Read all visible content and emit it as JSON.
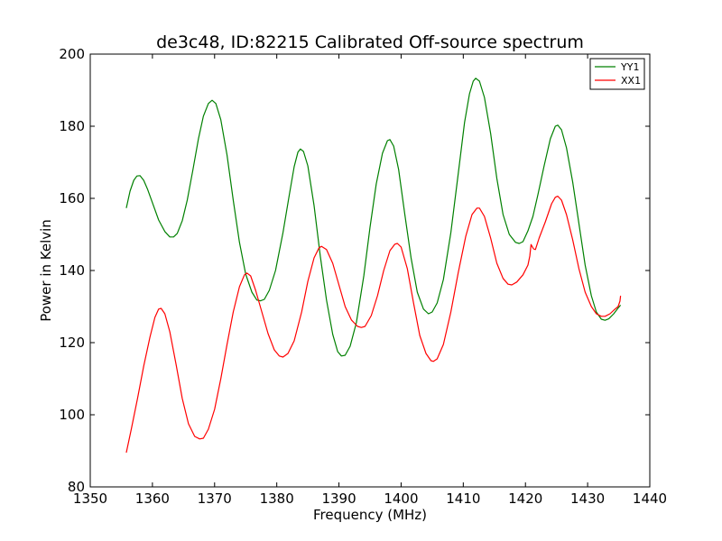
{
  "chart_data": {
    "type": "line",
    "title": "de3c48, ID:82215 Calibrated Off-source spectrum",
    "xlabel": "Frequency (MHz)",
    "ylabel": "Power in Kelvin",
    "xlim": [
      1350,
      1440
    ],
    "ylim": [
      80,
      200
    ],
    "xticks": [
      1350,
      1360,
      1370,
      1380,
      1390,
      1400,
      1410,
      1420,
      1430,
      1440
    ],
    "yticks": [
      80,
      100,
      120,
      140,
      160,
      180,
      200
    ],
    "grid": false,
    "legend_position": "top-right",
    "series": [
      {
        "name": "YY1",
        "color": "#008000",
        "points": [
          [
            1355.8,
            157.3
          ],
          [
            1356.4,
            162.0
          ],
          [
            1357.0,
            165.0
          ],
          [
            1357.5,
            166.2
          ],
          [
            1358.0,
            166.3
          ],
          [
            1358.6,
            165.0
          ],
          [
            1359.2,
            162.6
          ],
          [
            1360.0,
            158.8
          ],
          [
            1361.0,
            154.0
          ],
          [
            1362.0,
            150.8
          ],
          [
            1362.8,
            149.3
          ],
          [
            1363.4,
            149.3
          ],
          [
            1364.0,
            150.3
          ],
          [
            1364.8,
            153.8
          ],
          [
            1365.6,
            159.5
          ],
          [
            1366.5,
            167.8
          ],
          [
            1367.4,
            176.5
          ],
          [
            1368.2,
            182.8
          ],
          [
            1369.0,
            186.3
          ],
          [
            1369.6,
            187.2
          ],
          [
            1370.2,
            186.3
          ],
          [
            1371.0,
            181.8
          ],
          [
            1372.0,
            172.0
          ],
          [
            1373.0,
            159.5
          ],
          [
            1374.0,
            147.8
          ],
          [
            1375.0,
            139.0
          ],
          [
            1376.0,
            134.0
          ],
          [
            1376.8,
            131.8
          ],
          [
            1377.4,
            131.6
          ],
          [
            1378.0,
            132.0
          ],
          [
            1378.8,
            134.5
          ],
          [
            1379.8,
            140.0
          ],
          [
            1381.0,
            150.5
          ],
          [
            1382.0,
            160.8
          ],
          [
            1382.8,
            168.8
          ],
          [
            1383.4,
            172.8
          ],
          [
            1383.8,
            173.7
          ],
          [
            1384.3,
            173.0
          ],
          [
            1385.0,
            169.0
          ],
          [
            1386.0,
            158.0
          ],
          [
            1387.0,
            144.0
          ],
          [
            1388.0,
            131.8
          ],
          [
            1389.0,
            122.3
          ],
          [
            1389.8,
            117.5
          ],
          [
            1390.4,
            116.3
          ],
          [
            1391.0,
            116.5
          ],
          [
            1391.8,
            119.0
          ],
          [
            1392.8,
            125.5
          ],
          [
            1394.0,
            138.5
          ],
          [
            1395.0,
            152.0
          ],
          [
            1396.0,
            164.0
          ],
          [
            1397.0,
            172.5
          ],
          [
            1397.8,
            176.0
          ],
          [
            1398.2,
            176.3
          ],
          [
            1398.8,
            174.5
          ],
          [
            1399.6,
            168.0
          ],
          [
            1400.6,
            155.5
          ],
          [
            1401.6,
            143.5
          ],
          [
            1402.6,
            134.0
          ],
          [
            1403.6,
            129.3
          ],
          [
            1404.4,
            128.0
          ],
          [
            1405.0,
            128.5
          ],
          [
            1405.8,
            131.0
          ],
          [
            1406.8,
            137.5
          ],
          [
            1408.0,
            150.5
          ],
          [
            1409.2,
            167.0
          ],
          [
            1410.2,
            181.0
          ],
          [
            1411.0,
            189.0
          ],
          [
            1411.6,
            192.5
          ],
          [
            1412.0,
            193.3
          ],
          [
            1412.6,
            192.5
          ],
          [
            1413.4,
            188.0
          ],
          [
            1414.4,
            178.0
          ],
          [
            1415.4,
            165.5
          ],
          [
            1416.4,
            155.5
          ],
          [
            1417.4,
            150.0
          ],
          [
            1418.4,
            147.8
          ],
          [
            1419.0,
            147.5
          ],
          [
            1419.6,
            148.0
          ],
          [
            1420.4,
            151.0
          ],
          [
            1421.2,
            155.0
          ],
          [
            1422.0,
            161.0
          ],
          [
            1423.0,
            169.0
          ],
          [
            1424.0,
            176.5
          ],
          [
            1424.8,
            180.0
          ],
          [
            1425.2,
            180.3
          ],
          [
            1425.8,
            179.0
          ],
          [
            1426.6,
            174.0
          ],
          [
            1427.6,
            164.5
          ],
          [
            1428.6,
            153.0
          ],
          [
            1429.6,
            141.5
          ],
          [
            1430.6,
            133.0
          ],
          [
            1431.4,
            128.5
          ],
          [
            1432.2,
            126.5
          ],
          [
            1432.8,
            126.2
          ],
          [
            1433.4,
            126.6
          ],
          [
            1434.2,
            128.0
          ],
          [
            1435.0,
            129.8
          ],
          [
            1435.3,
            130.4
          ]
        ]
      },
      {
        "name": "XX1",
        "color": "#ff0000",
        "points": [
          [
            1355.8,
            89.5
          ],
          [
            1356.6,
            96.0
          ],
          [
            1357.6,
            104.5
          ],
          [
            1358.6,
            113.5
          ],
          [
            1359.6,
            121.5
          ],
          [
            1360.4,
            127.0
          ],
          [
            1361.0,
            129.3
          ],
          [
            1361.4,
            129.5
          ],
          [
            1362.0,
            128.0
          ],
          [
            1362.8,
            123.0
          ],
          [
            1363.8,
            114.0
          ],
          [
            1364.8,
            104.5
          ],
          [
            1365.8,
            97.5
          ],
          [
            1366.8,
            94.0
          ],
          [
            1367.6,
            93.3
          ],
          [
            1368.2,
            93.5
          ],
          [
            1369.0,
            96.0
          ],
          [
            1370.0,
            101.5
          ],
          [
            1371.0,
            110.0
          ],
          [
            1372.0,
            119.5
          ],
          [
            1373.0,
            128.5
          ],
          [
            1374.0,
            135.5
          ],
          [
            1374.8,
            138.8
          ],
          [
            1375.2,
            139.3
          ],
          [
            1375.8,
            138.5
          ],
          [
            1376.6,
            134.5
          ],
          [
            1377.6,
            128.5
          ],
          [
            1378.6,
            122.5
          ],
          [
            1379.6,
            118.0
          ],
          [
            1380.4,
            116.3
          ],
          [
            1381.0,
            116.0
          ],
          [
            1381.8,
            117.0
          ],
          [
            1382.8,
            120.5
          ],
          [
            1384.0,
            128.5
          ],
          [
            1385.0,
            137.0
          ],
          [
            1386.0,
            143.5
          ],
          [
            1386.8,
            146.3
          ],
          [
            1387.2,
            146.7
          ],
          [
            1388.0,
            145.8
          ],
          [
            1389.0,
            142.0
          ],
          [
            1390.0,
            136.0
          ],
          [
            1391.0,
            130.0
          ],
          [
            1392.0,
            126.3
          ],
          [
            1393.0,
            124.5
          ],
          [
            1393.6,
            124.2
          ],
          [
            1394.2,
            124.5
          ],
          [
            1395.2,
            127.5
          ],
          [
            1396.2,
            133.0
          ],
          [
            1397.2,
            140.0
          ],
          [
            1398.2,
            145.5
          ],
          [
            1399.0,
            147.3
          ],
          [
            1399.4,
            147.5
          ],
          [
            1400.0,
            146.5
          ],
          [
            1401.0,
            140.5
          ],
          [
            1402.0,
            131.0
          ],
          [
            1403.0,
            122.0
          ],
          [
            1404.0,
            117.0
          ],
          [
            1404.8,
            115.0
          ],
          [
            1405.2,
            114.8
          ],
          [
            1405.8,
            115.5
          ],
          [
            1406.8,
            119.5
          ],
          [
            1408.0,
            128.5
          ],
          [
            1409.2,
            139.5
          ],
          [
            1410.4,
            149.5
          ],
          [
            1411.4,
            155.5
          ],
          [
            1412.2,
            157.3
          ],
          [
            1412.6,
            157.3
          ],
          [
            1413.4,
            155.0
          ],
          [
            1414.4,
            149.0
          ],
          [
            1415.4,
            142.0
          ],
          [
            1416.4,
            137.8
          ],
          [
            1417.2,
            136.2
          ],
          [
            1417.8,
            136.0
          ],
          [
            1418.6,
            136.8
          ],
          [
            1419.6,
            138.8
          ],
          [
            1420.4,
            141.5
          ],
          [
            1420.7,
            144.0
          ],
          [
            1420.9,
            147.2
          ],
          [
            1421.3,
            146.0
          ],
          [
            1421.6,
            145.8
          ],
          [
            1422.2,
            149.0
          ],
          [
            1423.2,
            153.5
          ],
          [
            1424.2,
            158.5
          ],
          [
            1424.8,
            160.3
          ],
          [
            1425.2,
            160.6
          ],
          [
            1425.8,
            159.5
          ],
          [
            1426.6,
            155.5
          ],
          [
            1427.6,
            148.5
          ],
          [
            1428.6,
            140.5
          ],
          [
            1429.6,
            134.0
          ],
          [
            1430.6,
            130.0
          ],
          [
            1431.4,
            128.0
          ],
          [
            1432.2,
            127.3
          ],
          [
            1432.8,
            127.3
          ],
          [
            1433.6,
            128.0
          ],
          [
            1434.4,
            129.3
          ],
          [
            1434.9,
            130.0
          ],
          [
            1435.2,
            131.5
          ],
          [
            1435.3,
            133.0
          ]
        ]
      }
    ]
  }
}
